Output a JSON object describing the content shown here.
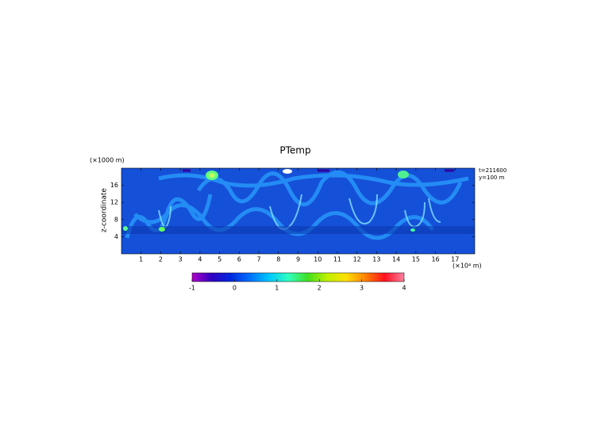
{
  "chart_data": {
    "type": "field",
    "title": "PTemp",
    "y_unit": "(×1000 m)",
    "ylabel": "z-coordinate",
    "x_unit": "(×10⁴ m)",
    "annotations": [
      "t=211600",
      "y=100 m"
    ],
    "xlim": [
      0,
      18
    ],
    "xticks": [
      1,
      2,
      3,
      4,
      5,
      6,
      7,
      8,
      9,
      10,
      11,
      12,
      13,
      14,
      15,
      16,
      17
    ],
    "ylim": [
      0,
      20
    ],
    "yticks": [
      4,
      8,
      12,
      16
    ],
    "colorbar": {
      "lim": [
        -1,
        4
      ],
      "ticks": [
        -1,
        0,
        1,
        2,
        3,
        4
      ],
      "colors": [
        "#b000c8",
        "#3000c0",
        "#0028e0",
        "#0070ff",
        "#00c8ff",
        "#30ffc0",
        "#40e020",
        "#c0f000",
        "#ffe000",
        "#ff8000",
        "#ff1020",
        "#ff80a0"
      ]
    }
  }
}
